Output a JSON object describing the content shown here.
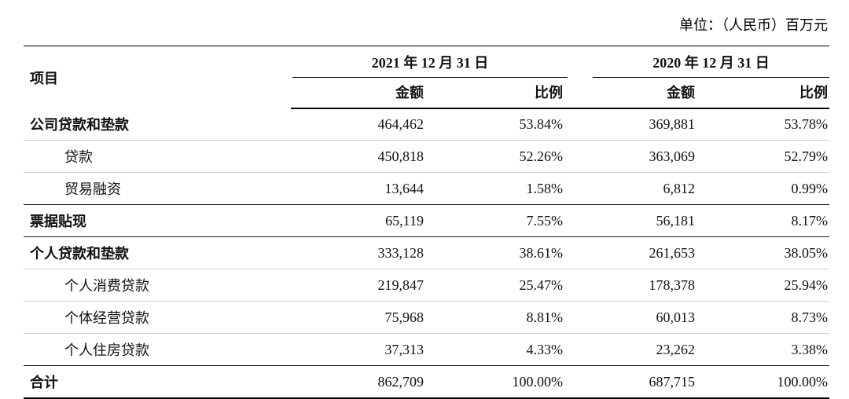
{
  "unit_note": "单位：（人民币）百万元",
  "table": {
    "item_header": "项目",
    "col_groups": [
      {
        "label": "2021 年 12 月 31 日",
        "sub_headers": [
          "金额",
          "比例"
        ]
      },
      {
        "label": "2020 年 12 月 31 日",
        "sub_headers": [
          "金额",
          "比例"
        ]
      }
    ],
    "rows": [
      {
        "label": "公司贷款和垫款",
        "level": "section",
        "values": [
          "464,462",
          "53.84%",
          "369,881",
          "53.78%"
        ]
      },
      {
        "label": "贷款",
        "level": "sub",
        "values": [
          "450,818",
          "52.26%",
          "363,069",
          "52.79%"
        ]
      },
      {
        "label": "贸易融资",
        "level": "sub",
        "values": [
          "13,644",
          "1.58%",
          "6,812",
          "0.99%"
        ]
      },
      {
        "label": "票据贴现",
        "level": "section",
        "values": [
          "65,119",
          "7.55%",
          "56,181",
          "8.17%"
        ]
      },
      {
        "label": "个人贷款和垫款",
        "level": "section",
        "values": [
          "333,128",
          "38.61%",
          "261,653",
          "38.05%"
        ]
      },
      {
        "label": "个人消费贷款",
        "level": "sub",
        "values": [
          "219,847",
          "25.47%",
          "178,378",
          "25.94%"
        ]
      },
      {
        "label": "个体经营贷款",
        "level": "sub",
        "values": [
          "75,968",
          "8.81%",
          "60,013",
          "8.73%"
        ]
      },
      {
        "label": "个人住房贷款",
        "level": "sub",
        "values": [
          "37,313",
          "4.33%",
          "23,262",
          "3.38%"
        ]
      },
      {
        "label": "合计",
        "level": "total",
        "values": [
          "862,709",
          "100.00%",
          "687,715",
          "100.00%"
        ]
      }
    ]
  }
}
